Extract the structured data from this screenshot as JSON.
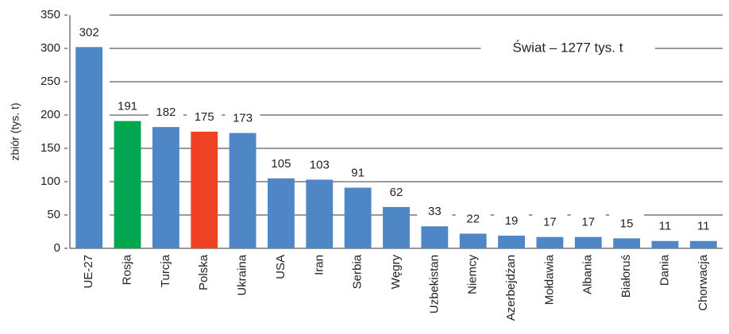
{
  "chart_data": {
    "type": "bar",
    "y_label": "zbiór (tys. t)",
    "annotation": "Świat – 1277 tys. t",
    "categories": [
      "UE-27",
      "Rosja",
      "Turcja",
      "Polska",
      "Ukraina",
      "USA",
      "Iran",
      "Serbia",
      "Węgry",
      "Uzbekistan",
      "Niemcy",
      "Azerbejdżan",
      "Mołdawia",
      "Albania",
      "Białoruś",
      "Dania",
      "Chorwacja"
    ],
    "values": [
      302,
      191,
      182,
      175,
      173,
      105,
      103,
      91,
      62,
      33,
      22,
      19,
      17,
      17,
      15,
      11,
      11
    ],
    "colors": [
      "#4f86c6",
      "#00a650",
      "#4f86c6",
      "#ef4123",
      "#4f86c6",
      "#4f86c6",
      "#4f86c6",
      "#4f86c6",
      "#4f86c6",
      "#4f86c6",
      "#4f86c6",
      "#4f86c6",
      "#4f86c6",
      "#4f86c6",
      "#4f86c6",
      "#4f86c6",
      "#4f86c6"
    ],
    "ylim": [
      0,
      350
    ],
    "yticks": [
      0,
      50,
      100,
      150,
      200,
      250,
      300,
      350
    ],
    "grid": true
  }
}
